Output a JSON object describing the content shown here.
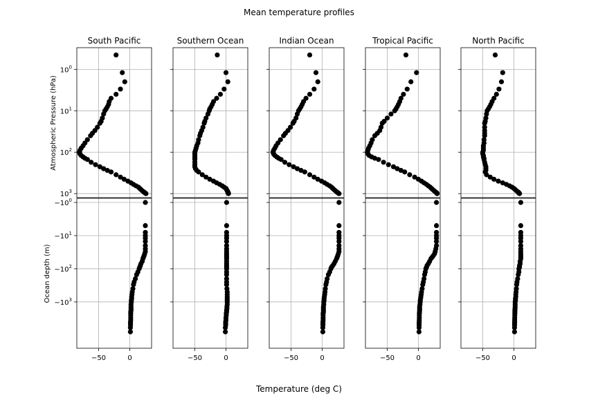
{
  "suptitle": "Mean temperature profiles",
  "xlabel": "Temperature (deg C)",
  "ylabel_top": "Atmospheric Pressure (hPa)",
  "ylabel_bottom": "Ocean depth (m)",
  "chart_data": {
    "type": "scatter",
    "marker_color": "#000000",
    "grid": true,
    "xlim": [
      -85,
      35
    ],
    "x_ticks": [
      -50,
      0
    ],
    "x_tick_labels": [
      "−50",
      "0"
    ],
    "atmosphere_axis": {
      "scale": "log",
      "inverted": true,
      "ylim": [
        0.3,
        1250
      ],
      "ticks": [
        1,
        10,
        100,
        1000
      ],
      "tick_labels": [
        "10^0",
        "10^1",
        "10^2",
        "10^3"
      ]
    },
    "ocean_axis": {
      "scale": "log",
      "inverted": true,
      "ylim": [
        -0.75,
        -25000
      ],
      "ticks": [
        -1,
        -10,
        -100,
        -1000
      ],
      "tick_labels": [
        "−10^0",
        "−10^1",
        "−10^2",
        "−10^3"
      ]
    },
    "regions": [
      {
        "name": "South Pacific",
        "atmosphere": {
          "pressure_hpa": [
            0.45,
            1.2,
            2,
            3,
            4,
            5,
            6,
            7,
            8,
            9,
            10,
            12,
            15,
            18,
            20,
            25,
            30,
            35,
            40,
            50,
            60,
            70,
            80,
            90,
            100,
            110,
            120,
            130,
            140,
            150,
            175,
            200,
            225,
            250,
            275,
            300,
            350,
            400,
            450,
            500,
            550,
            600,
            650,
            700,
            750,
            800,
            850,
            900,
            925,
            950,
            975,
            1000
          ],
          "temperature_c": [
            -22,
            -12,
            -8,
            -15,
            -22,
            -30,
            -33,
            -34,
            -36,
            -38,
            -40,
            -42,
            -44,
            -46,
            -48,
            -52,
            -56,
            -60,
            -63,
            -68,
            -72,
            -75,
            -78,
            -80,
            -81,
            -80,
            -78,
            -75,
            -72,
            -68,
            -62,
            -55,
            -48,
            -42,
            -36,
            -30,
            -22,
            -15,
            -9,
            -3,
            2,
            6,
            10,
            14,
            16,
            18,
            20,
            22,
            23,
            24,
            25,
            26
          ]
        },
        "ocean": {
          "depth_m": [
            -1,
            -5,
            -8,
            -10,
            -12,
            -15,
            -20,
            -25,
            -30,
            -35,
            -40,
            -45,
            -50,
            -60,
            -70,
            -80,
            -90,
            -100,
            -125,
            -150,
            -200,
            -250,
            -300,
            -400,
            -500,
            -600,
            -700,
            -800,
            -900,
            -1000,
            -1200,
            -1400,
            -1600,
            -1800,
            -2000,
            -2200,
            -2500,
            -3000,
            -3500,
            -4000,
            -4500,
            -5000,
            -6000,
            -8000
          ],
          "temperature_c": [
            25,
            25,
            25,
            25,
            25,
            25,
            25,
            25,
            25,
            24,
            23,
            22,
            21,
            20,
            18,
            17,
            16,
            15,
            13,
            11,
            9,
            7,
            6,
            5,
            4,
            3.5,
            3,
            3,
            2.5,
            2.5,
            2,
            2,
            2,
            2,
            1.5,
            1.5,
            1.5,
            1.5,
            1.5,
            1.2,
            1.2,
            1.2,
            1,
            1
          ]
        }
      },
      {
        "name": "Southern Ocean",
        "atmosphere": {
          "pressure_hpa": [
            0.45,
            1.2,
            2,
            3,
            4,
            5,
            6,
            7,
            8,
            9,
            10,
            12,
            15,
            18,
            20,
            25,
            30,
            35,
            40,
            50,
            60,
            70,
            80,
            90,
            100,
            110,
            120,
            130,
            140,
            150,
            175,
            200,
            225,
            250,
            275,
            300,
            350,
            400,
            450,
            500,
            550,
            600,
            650,
            700,
            750,
            800,
            850,
            900,
            925,
            950,
            975,
            1000
          ],
          "temperature_c": [
            -14,
            0,
            3,
            -3,
            -9,
            -15,
            -20,
            -22,
            -24,
            -26,
            -27,
            -29,
            -32,
            -34,
            -35,
            -37,
            -39,
            -41,
            -42,
            -44,
            -45,
            -47,
            -48,
            -49,
            -50,
            -50,
            -50,
            -50,
            -50,
            -50,
            -50,
            -50,
            -50,
            -49,
            -47,
            -44,
            -38,
            -32,
            -26,
            -20,
            -15,
            -10,
            -6,
            -3,
            0,
            1,
            2,
            3,
            3,
            3,
            4,
            4
          ]
        },
        "ocean": {
          "depth_m": [
            -1,
            -5,
            -8,
            -10,
            -12,
            -15,
            -20,
            -25,
            -30,
            -35,
            -40,
            -45,
            -50,
            -60,
            -70,
            -80,
            -90,
            -100,
            -125,
            -150,
            -200,
            -250,
            -300,
            -400,
            -500,
            -600,
            -700,
            -800,
            -900,
            -1000,
            -1200,
            -1400,
            -1600,
            -1800,
            -2000,
            -2200,
            -2500,
            -3000,
            -3500,
            -4000,
            -4500,
            -5000,
            -6000,
            -8000
          ],
          "temperature_c": [
            1,
            1,
            1,
            1,
            1,
            1,
            1,
            1,
            1,
            1,
            1,
            1,
            1,
            1,
            1,
            1,
            1,
            1,
            1,
            1,
            1,
            1,
            1,
            1.5,
            2,
            2,
            2,
            2,
            2,
            2,
            2,
            1.5,
            1.5,
            1,
            1,
            0.5,
            0.5,
            0,
            0,
            -0.5,
            -0.5,
            -0.5,
            -1,
            -1
          ]
        }
      },
      {
        "name": "Indian Ocean",
        "atmosphere": {
          "pressure_hpa": [
            0.45,
            1.2,
            2,
            3,
            4,
            5,
            6,
            7,
            8,
            9,
            10,
            12,
            15,
            18,
            20,
            25,
            30,
            35,
            40,
            50,
            60,
            70,
            80,
            90,
            100,
            110,
            120,
            130,
            140,
            150,
            175,
            200,
            225,
            250,
            275,
            300,
            350,
            400,
            450,
            500,
            550,
            600,
            650,
            700,
            750,
            800,
            850,
            900,
            925,
            950,
            975,
            1000
          ],
          "temperature_c": [
            -20,
            -10,
            -7,
            -13,
            -20,
            -26,
            -30,
            -32,
            -34,
            -36,
            -38,
            -40,
            -42,
            -45,
            -47,
            -51,
            -55,
            -59,
            -62,
            -67,
            -71,
            -74,
            -76,
            -78,
            -79,
            -78,
            -76,
            -73,
            -70,
            -66,
            -60,
            -53,
            -46,
            -40,
            -34,
            -28,
            -20,
            -13,
            -7,
            -1,
            4,
            8,
            12,
            15,
            17,
            19,
            21,
            23,
            24,
            25,
            26,
            27
          ]
        },
        "ocean": {
          "depth_m": [
            -1,
            -5,
            -8,
            -10,
            -12,
            -15,
            -20,
            -25,
            -30,
            -35,
            -40,
            -45,
            -50,
            -60,
            -70,
            -80,
            -90,
            -100,
            -125,
            -150,
            -200,
            -250,
            -300,
            -400,
            -500,
            -600,
            -700,
            -800,
            -900,
            -1000,
            -1200,
            -1400,
            -1600,
            -1800,
            -2000,
            -2200,
            -2500,
            -3000,
            -3500,
            -4000,
            -4500,
            -5000,
            -6000,
            -8000
          ],
          "temperature_c": [
            27,
            27,
            27,
            27,
            27,
            27,
            27,
            27,
            27,
            26,
            25,
            24,
            23,
            21,
            19,
            17,
            15,
            14,
            12,
            10,
            8,
            7,
            6,
            5,
            4.5,
            4,
            3.5,
            3,
            3,
            2.5,
            2.5,
            2,
            2,
            2,
            2,
            1.5,
            1.5,
            1.5,
            1.5,
            1.2,
            1.2,
            1.2,
            1,
            1
          ]
        }
      },
      {
        "name": "Tropical Pacific",
        "atmosphere": {
          "pressure_hpa": [
            0.45,
            1.2,
            2,
            3,
            4,
            5,
            6,
            7,
            8,
            9,
            10,
            12,
            15,
            18,
            20,
            25,
            30,
            35,
            40,
            50,
            60,
            70,
            80,
            90,
            100,
            110,
            120,
            130,
            140,
            150,
            175,
            200,
            225,
            250,
            275,
            300,
            350,
            400,
            450,
            500,
            550,
            600,
            650,
            700,
            750,
            800,
            850,
            900,
            925,
            950,
            975,
            1000
          ],
          "temperature_c": [
            -20,
            -3,
            -12,
            -18,
            -24,
            -28,
            -30,
            -32,
            -34,
            -36,
            -38,
            -44,
            -50,
            -55,
            -58,
            -60,
            -62,
            -66,
            -70,
            -74,
            -76,
            -78,
            -80,
            -81,
            -82,
            -81,
            -79,
            -75,
            -70,
            -64,
            -56,
            -48,
            -40,
            -34,
            -28,
            -22,
            -14,
            -6,
            0,
            5,
            9,
            13,
            16,
            19,
            21,
            23,
            25,
            27,
            28,
            29,
            30,
            30
          ]
        },
        "ocean": {
          "depth_m": [
            -1,
            -5,
            -8,
            -10,
            -12,
            -15,
            -20,
            -25,
            -30,
            -35,
            -40,
            -45,
            -50,
            -60,
            -70,
            -80,
            -90,
            -100,
            -125,
            -150,
            -200,
            -250,
            -300,
            -400,
            -500,
            -600,
            -700,
            -800,
            -900,
            -1000,
            -1200,
            -1400,
            -1600,
            -1800,
            -2000,
            -2200,
            -2500,
            -3000,
            -3500,
            -4000,
            -4500,
            -5000,
            -6000,
            -8000
          ],
          "temperature_c": [
            29,
            29,
            29,
            29,
            29,
            29,
            29,
            28,
            27,
            26,
            24,
            22,
            20,
            18,
            16,
            14,
            13,
            12,
            11,
            10,
            9,
            8,
            7,
            6,
            5,
            4.5,
            4,
            3.5,
            3,
            3,
            2.5,
            2,
            2,
            2,
            1.8,
            1.6,
            1.5,
            1.5,
            1.4,
            1.3,
            1.2,
            1.2,
            1.1,
            1
          ]
        }
      },
      {
        "name": "North Pacific",
        "atmosphere": {
          "pressure_hpa": [
            0.45,
            1.2,
            2,
            3,
            4,
            5,
            6,
            7,
            8,
            9,
            10,
            12,
            15,
            18,
            20,
            25,
            30,
            35,
            40,
            50,
            60,
            70,
            80,
            90,
            100,
            110,
            120,
            130,
            140,
            150,
            175,
            200,
            225,
            250,
            275,
            300,
            350,
            400,
            450,
            500,
            550,
            600,
            650,
            700,
            750,
            800,
            850,
            900,
            925,
            950,
            975,
            1000
          ],
          "temperature_c": [
            -30,
            -18,
            -20,
            -24,
            -28,
            -32,
            -35,
            -37,
            -39,
            -41,
            -43,
            -44,
            -45,
            -46,
            -47,
            -47,
            -47,
            -47,
            -47,
            -48,
            -48,
            -49,
            -49,
            -49,
            -50,
            -50,
            -49,
            -49,
            -48,
            -48,
            -47,
            -46,
            -45,
            -45,
            -45,
            -46,
            -44,
            -38,
            -32,
            -25,
            -18,
            -12,
            -7,
            -3,
            0,
            2,
            4,
            6,
            7,
            8,
            8,
            9
          ]
        },
        "ocean": {
          "depth_m": [
            -1,
            -5,
            -8,
            -10,
            -12,
            -15,
            -20,
            -25,
            -30,
            -35,
            -40,
            -45,
            -50,
            -60,
            -70,
            -80,
            -90,
            -100,
            -125,
            -150,
            -200,
            -250,
            -300,
            -400,
            -500,
            -600,
            -700,
            -800,
            -900,
            -1000,
            -1200,
            -1400,
            -1600,
            -1800,
            -2000,
            -2200,
            -2500,
            -3000,
            -3500,
            -4000,
            -4500,
            -5000,
            -6000,
            -8000
          ],
          "temperature_c": [
            11,
            11,
            11,
            11,
            11,
            11,
            11,
            11,
            11,
            11,
            11,
            11,
            11,
            10,
            10,
            9,
            9,
            8,
            8,
            7,
            6,
            5,
            4.5,
            4,
            3.5,
            3,
            3,
            2.5,
            2.5,
            2,
            2,
            2,
            1.8,
            1.6,
            1.5,
            1.5,
            1.4,
            1.3,
            1.2,
            1.2,
            1.1,
            1.1,
            1,
            1
          ]
        }
      }
    ]
  }
}
